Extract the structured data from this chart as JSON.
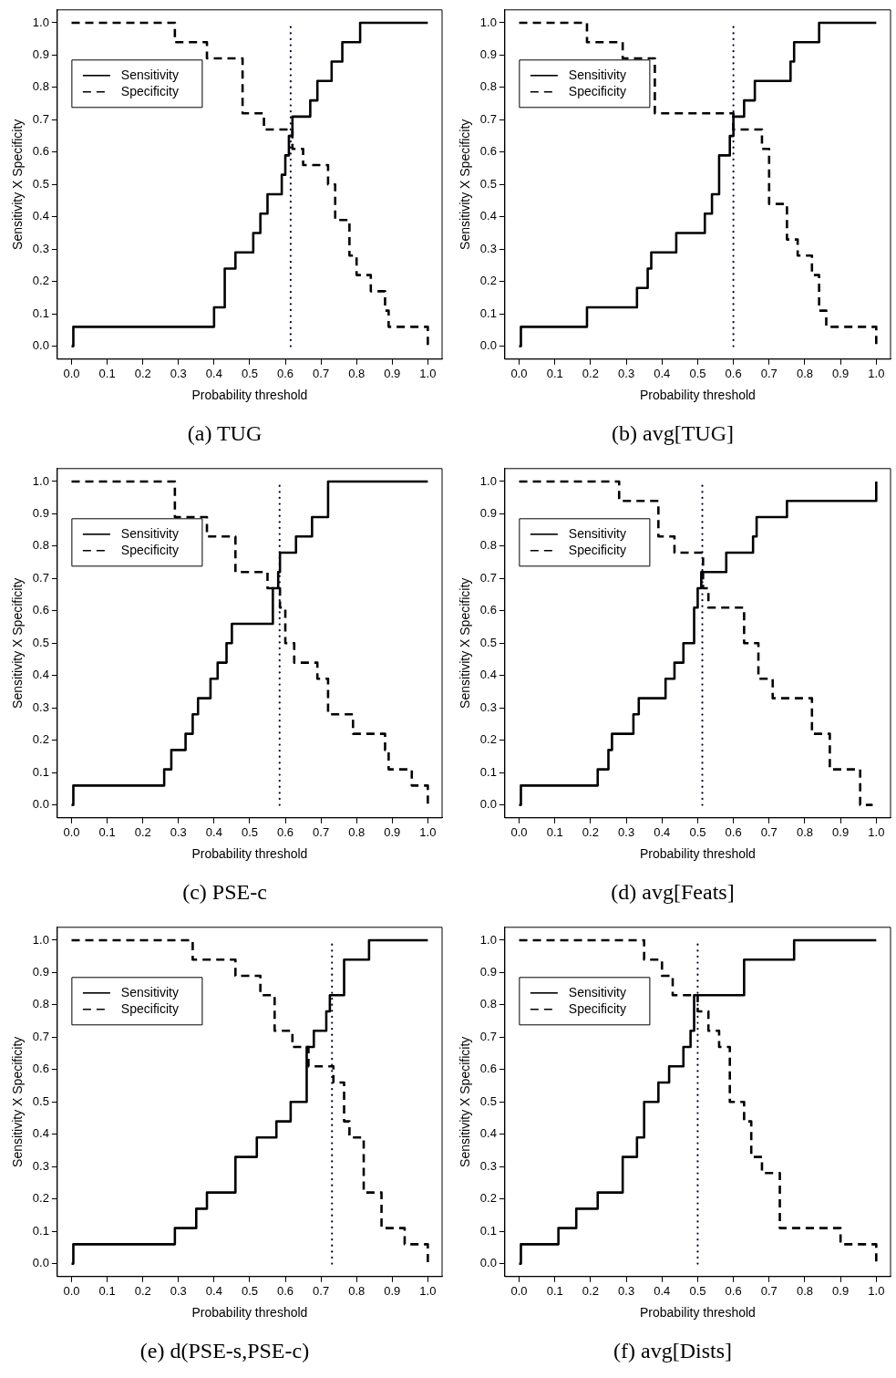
{
  "chart_data": [
    {
      "type": "step",
      "title": "(a) TUG",
      "xlabel": "Probability threshold",
      "ylabel": "Sensitivity X Specificity",
      "legend": "top left",
      "grid": false,
      "marker": "none",
      "xlim": [
        -0.04,
        1.04
      ],
      "ylim": [
        -0.04,
        1.04
      ],
      "xticks": [
        {
          "value": 0.0,
          "label": "0.0"
        },
        {
          "value": 0.1,
          "label": "0.1"
        },
        {
          "value": 0.2,
          "label": "0.2"
        },
        {
          "value": 0.3,
          "label": "0.3"
        },
        {
          "value": 0.4,
          "label": "0.4"
        },
        {
          "value": 0.5,
          "label": "0.5"
        },
        {
          "value": 0.6,
          "label": "0.6"
        },
        {
          "value": 0.7,
          "label": "0.7"
        },
        {
          "value": 0.8,
          "label": "0.8"
        },
        {
          "value": 0.9,
          "label": "0.9"
        },
        {
          "value": 1.0,
          "label": "1.0"
        }
      ],
      "yticks": [
        {
          "value": 0.0,
          "label": "0.0"
        },
        {
          "value": 0.1,
          "label": "0.1"
        },
        {
          "value": 0.2,
          "label": "0.2"
        },
        {
          "value": 0.3,
          "label": "0.3"
        },
        {
          "value": 0.4,
          "label": "0.4"
        },
        {
          "value": 0.5,
          "label": "0.5"
        },
        {
          "value": 0.6,
          "label": "0.6"
        },
        {
          "value": 0.7,
          "label": "0.7"
        },
        {
          "value": 0.8,
          "label": "0.8"
        },
        {
          "value": 0.9,
          "label": "0.9"
        },
        {
          "value": 1.0,
          "label": "1.0"
        }
      ],
      "ref_lines": [
        {
          "axis": "x",
          "value": 0.615,
          "line_style": "dotted",
          "color": "#000033"
        }
      ],
      "series": [
        {
          "name": "Sensitivity",
          "color": "#000000",
          "line_style": "solid",
          "x": [
            0,
            0.005,
            0.4,
            0.43,
            0.46,
            0.51,
            0.53,
            0.55,
            0.59,
            0.6,
            0.61,
            0.62,
            0.67,
            0.69,
            0.73,
            0.76,
            0.81,
            1.0
          ],
          "values": [
            0,
            0.06,
            0.12,
            0.24,
            0.29,
            0.35,
            0.41,
            0.47,
            0.53,
            0.59,
            0.65,
            0.71,
            0.76,
            0.82,
            0.88,
            0.94,
            1.0,
            1.0
          ]
        },
        {
          "name": "Specificity",
          "color": "#000000",
          "line_style": "dashed",
          "x": [
            0,
            0.29,
            0.38,
            0.48,
            0.54,
            0.62,
            0.65,
            0.72,
            0.74,
            0.78,
            0.8,
            0.84,
            0.88,
            0.89,
            1.0
          ],
          "values": [
            1,
            0.94,
            0.89,
            0.72,
            0.67,
            0.61,
            0.56,
            0.5,
            0.39,
            0.28,
            0.22,
            0.17,
            0.11,
            0.06,
            0
          ]
        }
      ]
    },
    {
      "type": "step",
      "title": "(b) avg[TUG]",
      "xlabel": "Probability threshold",
      "ylabel": "Sensitivity X Specificity",
      "legend": "top left",
      "grid": false,
      "marker": "none",
      "xlim": [
        -0.04,
        1.04
      ],
      "ylim": [
        -0.04,
        1.04
      ],
      "xticks": [
        {
          "value": 0,
          "label": "0.0"
        },
        0.1,
        0.2,
        0.3,
        0.4,
        0.5,
        0.6,
        0.7,
        0.8,
        0.9,
        {
          "value": 1,
          "label": "1.0"
        }
      ],
      "yticks": [
        {
          "value": 0,
          "label": "0.0"
        },
        0.1,
        0.2,
        0.3,
        0.4,
        0.5,
        0.6,
        0.7,
        0.8,
        0.9,
        {
          "value": 1,
          "label": "1.0"
        }
      ],
      "ref_lines": [
        {
          "axis": "x",
          "value": 0.6,
          "line_style": "dotted",
          "color": "#000033"
        }
      ],
      "series": [
        {
          "name": "Sensitivity",
          "color": "#000000",
          "line_style": "solid",
          "x": [
            0,
            0.005,
            0.19,
            0.33,
            0.36,
            0.37,
            0.44,
            0.52,
            0.54,
            0.56,
            0.59,
            0.6,
            0.63,
            0.66,
            0.76,
            0.77,
            0.84,
            1.0
          ],
          "values": [
            0,
            0.06,
            0.12,
            0.18,
            0.24,
            0.29,
            0.35,
            0.41,
            0.47,
            0.59,
            0.65,
            0.71,
            0.76,
            0.82,
            0.88,
            0.94,
            1.0,
            1.0
          ]
        },
        {
          "name": "Specificity",
          "color": "#000000",
          "line_style": "dashed",
          "x": [
            0,
            0.19,
            0.29,
            0.38,
            0.6,
            0.68,
            0.7,
            0.75,
            0.78,
            0.82,
            0.84,
            0.86,
            1.0
          ],
          "values": [
            1,
            0.94,
            0.89,
            0.72,
            0.67,
            0.61,
            0.44,
            0.33,
            0.28,
            0.22,
            0.11,
            0.06,
            0
          ]
        }
      ]
    },
    {
      "type": "step",
      "title": "(c) PSE-c",
      "xlabel": "Probability threshold",
      "ylabel": "Sensitivity X Specificity",
      "legend": "top left",
      "grid": false,
      "marker": "none",
      "xlim": [
        -0.04,
        1.04
      ],
      "ylim": [
        -0.04,
        1.04
      ],
      "xticks": [
        {
          "value": 0,
          "label": "0.0"
        },
        0.1,
        0.2,
        0.3,
        0.4,
        0.5,
        0.6,
        0.7,
        0.8,
        0.9,
        {
          "value": 1,
          "label": "1.0"
        }
      ],
      "yticks": [
        {
          "value": 0,
          "label": "0.0"
        },
        0.1,
        0.2,
        0.3,
        0.4,
        0.5,
        0.6,
        0.7,
        0.8,
        0.9,
        {
          "value": 1,
          "label": "1.0"
        }
      ],
      "ref_lines": [
        {
          "axis": "x",
          "value": 0.584,
          "line_style": "dotted",
          "color": "#000033"
        }
      ],
      "series": [
        {
          "name": "Sensitivity",
          "color": "#000000",
          "line_style": "solid",
          "x": [
            0,
            0.005,
            0.26,
            0.28,
            0.32,
            0.34,
            0.355,
            0.39,
            0.41,
            0.435,
            0.45,
            0.565,
            0.58,
            0.585,
            0.63,
            0.675,
            0.72,
            1.0
          ],
          "values": [
            0,
            0.06,
            0.11,
            0.17,
            0.22,
            0.28,
            0.33,
            0.39,
            0.44,
            0.5,
            0.56,
            0.67,
            0.72,
            0.78,
            0.83,
            0.89,
            1.0,
            1.0
          ]
        },
        {
          "name": "Specificity",
          "color": "#000000",
          "line_style": "dashed",
          "x": [
            0,
            0.29,
            0.38,
            0.46,
            0.55,
            0.585,
            0.6,
            0.625,
            0.69,
            0.72,
            0.79,
            0.88,
            0.89,
            0.955,
            1.0
          ],
          "values": [
            1,
            0.89,
            0.83,
            0.72,
            0.67,
            0.61,
            0.5,
            0.44,
            0.39,
            0.28,
            0.22,
            0.17,
            0.11,
            0.06,
            0
          ]
        }
      ]
    },
    {
      "type": "step",
      "title": "(d) avg[Feats]",
      "xlabel": "Probability threshold",
      "ylabel": "Sensitivity X Specificity",
      "legend": "top left",
      "grid": false,
      "marker": "none",
      "xlim": [
        -0.04,
        1.04
      ],
      "ylim": [
        -0.04,
        1.04
      ],
      "xticks": [
        {
          "value": 0,
          "label": "0.0"
        },
        0.1,
        0.2,
        0.3,
        0.4,
        0.5,
        0.6,
        0.7,
        0.8,
        0.9,
        {
          "value": 1,
          "label": "1.0"
        }
      ],
      "yticks": [
        {
          "value": 0,
          "label": "0.0"
        },
        0.1,
        0.2,
        0.3,
        0.4,
        0.5,
        0.6,
        0.7,
        0.8,
        0.9,
        {
          "value": 1,
          "label": "1.0"
        }
      ],
      "ref_lines": [
        {
          "axis": "x",
          "value": 0.513,
          "line_style": "dotted",
          "color": "#000033"
        }
      ],
      "series": [
        {
          "name": "Sensitivity",
          "color": "#000000",
          "line_style": "solid",
          "x": [
            0,
            0.005,
            0.22,
            0.25,
            0.26,
            0.32,
            0.335,
            0.41,
            0.435,
            0.46,
            0.49,
            0.5,
            0.51,
            0.58,
            0.655,
            0.665,
            0.75,
            1.0
          ],
          "values": [
            0,
            0.06,
            0.11,
            0.17,
            0.22,
            0.28,
            0.33,
            0.39,
            0.44,
            0.5,
            0.61,
            0.67,
            0.72,
            0.78,
            0.83,
            0.89,
            0.94,
            1.0
          ]
        },
        {
          "name": "Specificity",
          "color": "#000000",
          "line_style": "dashed",
          "x": [
            0,
            0.28,
            0.39,
            0.435,
            0.515,
            0.53,
            0.63,
            0.67,
            0.71,
            0.82,
            0.87,
            0.955,
            0.99
          ],
          "values": [
            1,
            0.94,
            0.83,
            0.78,
            0.67,
            0.61,
            0.5,
            0.39,
            0.33,
            0.22,
            0.11,
            0,
            0
          ]
        }
      ]
    },
    {
      "type": "step",
      "title": "(e) d(PSE-s,PSE-c)",
      "xlabel": "Probability threshold",
      "ylabel": "Sensitivity X Specificity",
      "legend": "top left",
      "grid": false,
      "marker": "none",
      "xlim": [
        -0.04,
        1.04
      ],
      "ylim": [
        -0.04,
        1.04
      ],
      "xticks": [
        {
          "value": 0,
          "label": "0.0"
        },
        0.1,
        0.2,
        0.3,
        0.4,
        0.5,
        0.6,
        0.7,
        0.8,
        0.9,
        {
          "value": 1,
          "label": "1.0"
        }
      ],
      "yticks": [
        {
          "value": 0,
          "label": "0.0"
        },
        0.1,
        0.2,
        0.3,
        0.4,
        0.5,
        0.6,
        0.7,
        0.8,
        0.9,
        {
          "value": 1,
          "label": "1.0"
        }
      ],
      "ref_lines": [
        {
          "axis": "x",
          "value": 0.731,
          "line_style": "dotted",
          "color": "#000033"
        }
      ],
      "series": [
        {
          "name": "Sensitivity",
          "color": "#000000",
          "line_style": "solid",
          "x": [
            0,
            0.005,
            0.29,
            0.35,
            0.38,
            0.46,
            0.52,
            0.575,
            0.615,
            0.66,
            0.68,
            0.715,
            0.725,
            0.765,
            0.835,
            1.0
          ],
          "values": [
            0,
            0.06,
            0.11,
            0.17,
            0.22,
            0.33,
            0.39,
            0.44,
            0.5,
            0.67,
            0.72,
            0.78,
            0.83,
            0.94,
            1.0,
            1.0
          ]
        },
        {
          "name": "Specificity",
          "color": "#000000",
          "line_style": "dashed",
          "x": [
            0,
            0.34,
            0.46,
            0.53,
            0.57,
            0.62,
            0.665,
            0.735,
            0.765,
            0.78,
            0.82,
            0.87,
            0.935,
            1.0
          ],
          "values": [
            1,
            0.94,
            0.89,
            0.83,
            0.72,
            0.67,
            0.61,
            0.56,
            0.44,
            0.39,
            0.22,
            0.11,
            0.06,
            0
          ]
        }
      ]
    },
    {
      "type": "step",
      "title": "(f) avg[Dists]",
      "xlabel": "Probability threshold",
      "ylabel": "Sensitivity X Specificity",
      "legend": "top left",
      "grid": false,
      "marker": "none",
      "xlim": [
        -0.04,
        1.04
      ],
      "ylim": [
        -0.04,
        1.04
      ],
      "xticks": [
        {
          "value": 0,
          "label": "0.0"
        },
        0.1,
        0.2,
        0.3,
        0.4,
        0.5,
        0.6,
        0.7,
        0.8,
        0.9,
        {
          "value": 1,
          "label": "1.0"
        }
      ],
      "yticks": [
        {
          "value": 0,
          "label": "0.0"
        },
        0.1,
        0.2,
        0.3,
        0.4,
        0.5,
        0.6,
        0.7,
        0.8,
        0.9,
        {
          "value": 1,
          "label": "1.0"
        }
      ],
      "ref_lines": [
        {
          "axis": "x",
          "value": 0.5,
          "line_style": "dotted",
          "color": "#000033"
        }
      ],
      "series": [
        {
          "name": "Sensitivity",
          "color": "#000000",
          "line_style": "solid",
          "x": [
            0,
            0.005,
            0.11,
            0.16,
            0.22,
            0.29,
            0.33,
            0.35,
            0.39,
            0.42,
            0.46,
            0.48,
            0.49,
            0.63,
            0.77,
            1.0
          ],
          "values": [
            0,
            0.06,
            0.11,
            0.17,
            0.22,
            0.33,
            0.39,
            0.5,
            0.56,
            0.61,
            0.67,
            0.72,
            0.83,
            0.94,
            1.0,
            1.0
          ]
        },
        {
          "name": "Specificity",
          "color": "#000000",
          "line_style": "dashed",
          "x": [
            0,
            0.35,
            0.4,
            0.43,
            0.5,
            0.53,
            0.56,
            0.59,
            0.63,
            0.65,
            0.68,
            0.73,
            0.9,
            1.0
          ],
          "values": [
            1,
            0.94,
            0.89,
            0.83,
            0.78,
            0.72,
            0.67,
            0.5,
            0.44,
            0.33,
            0.28,
            0.11,
            0.06,
            0
          ]
        }
      ]
    }
  ]
}
